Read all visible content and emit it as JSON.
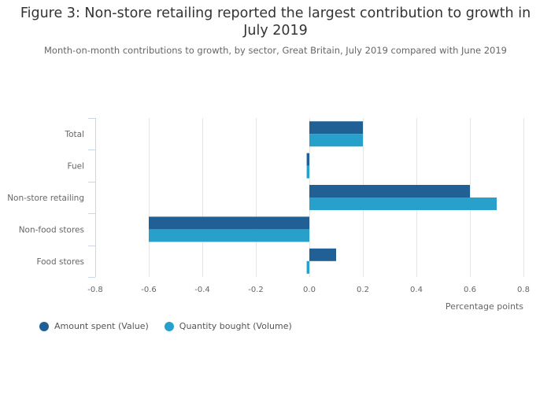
{
  "colors": {
    "value_series": "#206095",
    "volume_series": "#27A0CC",
    "gridline": "#e6e6e6",
    "axis_line": "#ccd6eb"
  },
  "chart_data": {
    "type": "bar",
    "orientation": "horizontal",
    "title": "Figure 3: Non-store retailing reported the largest contribution to growth in July 2019",
    "subtitle": "Month-on-month contributions to growth, by sector, Great Britain, July 2019 compared with June 2019",
    "categories": [
      "Total",
      "Fuel",
      "Non-store retailing",
      "Non-food stores",
      "Food stores"
    ],
    "series": [
      {
        "name": "Amount spent (Value)",
        "color": "#206095",
        "values": [
          0.2,
          -0.01,
          0.6,
          -0.6,
          0.1
        ]
      },
      {
        "name": "Quantity bought (Volume)",
        "color": "#27A0CC",
        "values": [
          0.2,
          -0.01,
          0.7,
          -0.6,
          -0.01
        ]
      }
    ],
    "xlabel": "Percentage points",
    "ylabel": "",
    "xlim": [
      -0.8,
      0.8
    ],
    "xticks": [
      -0.8,
      -0.6,
      -0.4,
      -0.2,
      0.0,
      0.2,
      0.4,
      0.6,
      0.8
    ],
    "xtick_labels": [
      "-0.8",
      "-0.6",
      "-0.4",
      "-0.2",
      "0.0",
      "0.2",
      "0.4",
      "0.6",
      "0.8"
    ],
    "grid": true,
    "legend_position": "bottom-left"
  }
}
